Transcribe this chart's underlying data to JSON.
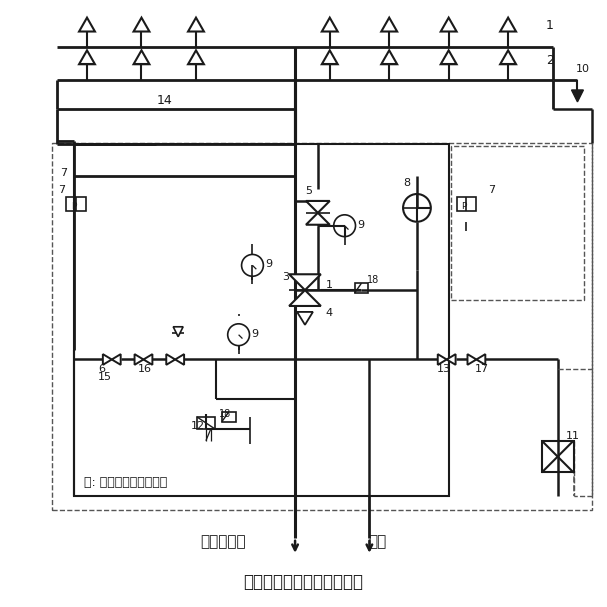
{
  "title": "传动管启动雨淋系统示意图",
  "note": "注: 框内为雨淋报警阀组",
  "label_water": "接消防供水",
  "label_drain": "排水",
  "bg_color": "#ffffff",
  "line_color": "#1a1a1a",
  "dashed_color": "#555555"
}
